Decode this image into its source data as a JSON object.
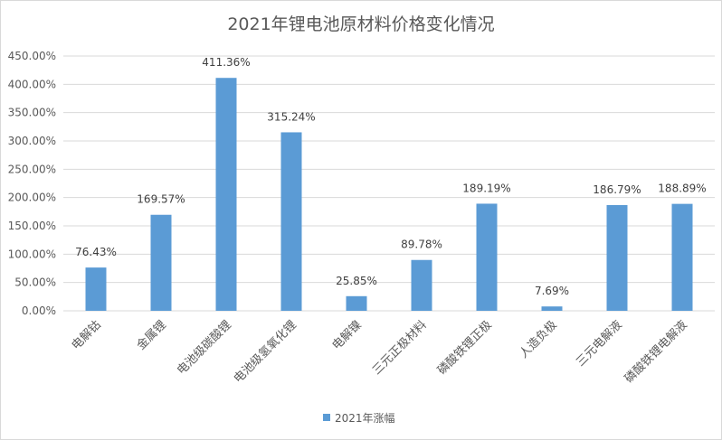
{
  "chart_data": {
    "type": "bar",
    "title": "2021年锂电池原材料价格变化情况",
    "categories": [
      "电解钴",
      "金属锂",
      "电池级碳酸锂",
      "电池级氢氧化锂",
      "电解镍",
      "三元正极材料",
      "磷酸铁锂正极",
      "人造负极",
      "三元电解液",
      "磷酸铁锂电解液"
    ],
    "series": [
      {
        "name": "2021年涨幅",
        "values": [
          76.43,
          169.57,
          411.36,
          315.24,
          25.85,
          89.78,
          189.19,
          7.69,
          186.79,
          188.89
        ],
        "labels": [
          "76.43%",
          "169.57%",
          "411.36%",
          "315.24%",
          "25.85%",
          "89.78%",
          "189.19%",
          "7.69%",
          "186.79%",
          "188.89%"
        ]
      }
    ],
    "yticks": [
      "0.00%",
      "50.00%",
      "100.00%",
      "150.00%",
      "200.00%",
      "250.00%",
      "300.00%",
      "350.00%",
      "400.00%",
      "450.00%"
    ],
    "ylim": [
      0,
      450
    ],
    "grid": true,
    "legend": "bottom",
    "colors": {
      "bar": "#5b9bd5",
      "grid": "#d9d9d9",
      "text": "#595959"
    }
  }
}
